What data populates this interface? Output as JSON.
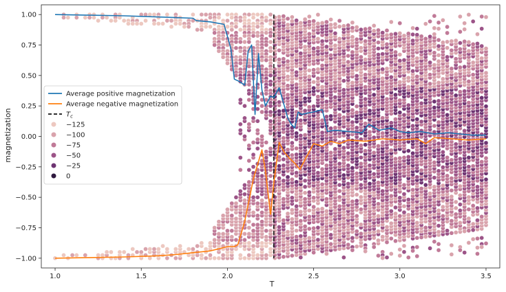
{
  "chart_data": {
    "type": "scatter",
    "title": "",
    "xlabel": "T",
    "ylabel": "magnetization",
    "xlim": [
      0.92,
      3.58
    ],
    "ylim": [
      -1.08,
      1.08
    ],
    "xticks": [
      1.0,
      1.5,
      2.0,
      2.5,
      3.0,
      3.5
    ],
    "xtick_labels": [
      "1.0",
      "1.5",
      "2.0",
      "2.5",
      "3.0",
      "3.5"
    ],
    "yticks": [
      1.0,
      0.75,
      0.5,
      0.25,
      0.0,
      -0.25,
      -0.5,
      -0.75,
      -1.0
    ],
    "ytick_labels": [
      "1.00",
      "0.75",
      "0.50",
      "0.25",
      "0.00",
      "−0.25",
      "−0.50",
      "−0.75",
      "−1.00"
    ],
    "critical_temperature": 2.269,
    "series": [
      {
        "name": "Average positive magnetization",
        "color": "#1f77b4",
        "x": [
          1.0,
          1.2,
          1.4,
          1.6,
          1.8,
          1.82,
          1.9,
          1.98,
          2.02,
          2.04,
          2.07,
          2.1,
          2.12,
          2.14,
          2.16,
          2.18,
          2.2,
          2.22,
          2.25,
          2.27,
          2.3,
          2.33,
          2.35,
          2.37,
          2.39,
          2.41,
          2.43,
          2.46,
          2.5,
          2.55,
          2.58,
          2.62,
          2.7,
          2.78,
          2.82,
          2.88,
          2.95,
          3.0,
          3.05,
          3.12,
          3.2,
          3.28,
          3.35,
          3.42,
          3.5
        ],
        "y": [
          1.0,
          0.995,
          0.99,
          0.98,
          0.97,
          0.95,
          0.94,
          0.92,
          0.72,
          0.47,
          0.45,
          0.42,
          0.7,
          0.75,
          0.18,
          0.68,
          0.38,
          0.25,
          0.33,
          0.32,
          0.4,
          0.25,
          0.15,
          0.1,
          0.07,
          0.2,
          0.18,
          0.19,
          0.2,
          0.22,
          0.04,
          0.05,
          0.04,
          0.03,
          0.1,
          0.05,
          0.07,
          0.04,
          0.03,
          0.04,
          0.02,
          0.03,
          0.02,
          0.01,
          0.01
        ]
      },
      {
        "name": "Average negative magnetization",
        "color": "#ff7f0e",
        "x": [
          1.0,
          1.2,
          1.4,
          1.6,
          1.7,
          1.8,
          1.9,
          2.0,
          2.04,
          2.06,
          2.1,
          2.15,
          2.2,
          2.22,
          2.25,
          2.27,
          2.3,
          2.33,
          2.36,
          2.39,
          2.42,
          2.45,
          2.5,
          2.55,
          2.6,
          2.65,
          2.7,
          2.8,
          2.9,
          3.0,
          3.1,
          3.15,
          3.2,
          3.3,
          3.4,
          3.5
        ],
        "y": [
          -1.0,
          -0.995,
          -0.99,
          -0.98,
          -0.97,
          -0.955,
          -0.94,
          -0.905,
          -0.905,
          -0.89,
          -0.7,
          -0.35,
          -0.11,
          -0.28,
          -0.64,
          -0.37,
          -0.05,
          -0.13,
          -0.18,
          -0.22,
          -0.27,
          -0.19,
          -0.06,
          -0.08,
          -0.04,
          -0.06,
          -0.03,
          -0.04,
          -0.02,
          -0.03,
          -0.02,
          -0.06,
          -0.01,
          -0.02,
          -0.03,
          -0.02
        ]
      }
    ],
    "scatter": {
      "description_values": "Sampled magnetization values per temperature, colored by energy",
      "x_start": 1.0,
      "x_end": 3.5,
      "x_step": 0.025,
      "y_step": 0.025,
      "hue_label_values": [
        -125,
        -100,
        -75,
        -50,
        -25,
        0
      ],
      "hue_colors": [
        "#edc8c0",
        "#d9a3ac",
        "#c07a98",
        "#9c5488",
        "#6e3472",
        "#2f1a3f"
      ]
    },
    "legend": {
      "location": "center-left",
      "entries": [
        {
          "label": "Average positive magnetization",
          "kind": "line",
          "color": "#1f77b4"
        },
        {
          "label": "Average negative magnetization",
          "kind": "line",
          "color": "#ff7f0e"
        },
        {
          "label": "Tc",
          "kind": "dashed",
          "color": "#111111"
        },
        {
          "label": "−125",
          "kind": "dot",
          "color": "#edc8c0"
        },
        {
          "label": "−100",
          "kind": "dot",
          "color": "#d9a3ac"
        },
        {
          "label": "−75",
          "kind": "dot",
          "color": "#c07a98"
        },
        {
          "label": "−50",
          "kind": "dot",
          "color": "#9c5488"
        },
        {
          "label": "−25",
          "kind": "dot",
          "color": "#6e3472"
        },
        {
          "label": "0",
          "kind": "dot",
          "color": "#2f1a3f"
        }
      ]
    }
  }
}
